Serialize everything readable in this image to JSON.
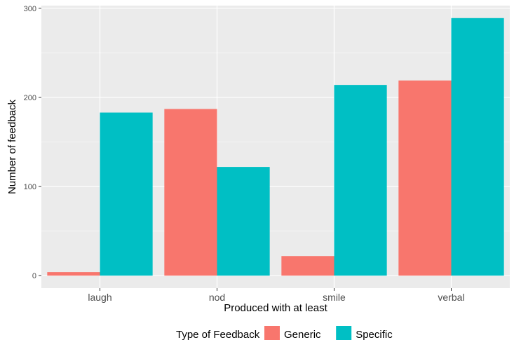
{
  "chart_data": {
    "type": "bar",
    "categories": [
      "laugh",
      "nod",
      "smile",
      "verbal"
    ],
    "series": [
      {
        "name": "Generic",
        "values": [
          4,
          187,
          22,
          219
        ],
        "color": "#F8766D"
      },
      {
        "name": "Specific",
        "values": [
          183,
          122,
          214,
          289
        ],
        "color": "#00BFC4"
      }
    ],
    "xlabel": "Produced with at least",
    "ylabel": "Number of feedback",
    "ylim": [
      -14,
      303
    ],
    "yticks": [
      0,
      100,
      200,
      300
    ],
    "ytick_labels": [
      "0",
      "100",
      "200",
      "300"
    ],
    "grid": true,
    "legend": {
      "title": "Type of Feedback",
      "position": "bottom"
    },
    "colors": {
      "panel": "#EBEBEB",
      "grid": "#FFFFFF",
      "tick": "#333333"
    }
  }
}
